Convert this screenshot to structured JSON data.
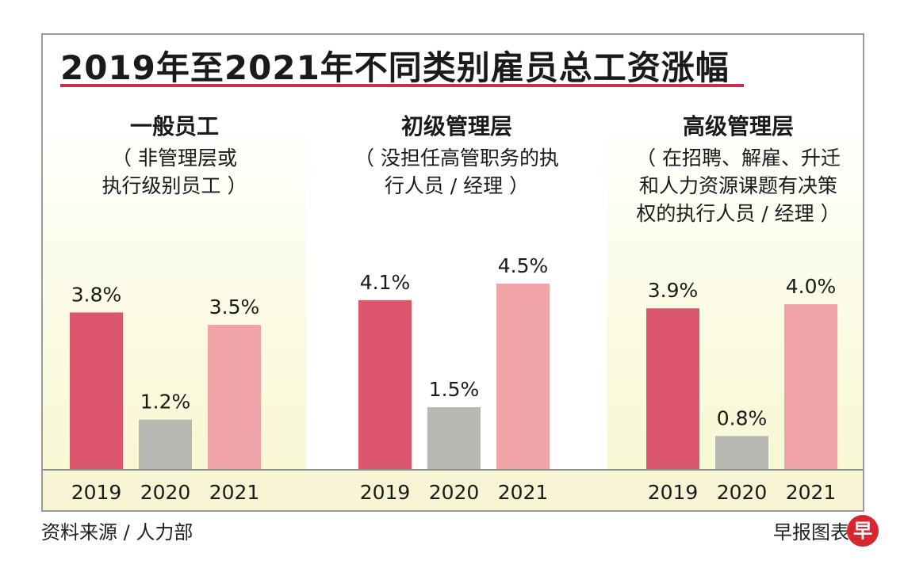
{
  "title": "2019年至2021年不同类别雇员总工资涨幅",
  "source": "资料来源 / 人力部",
  "credit": "早报图表",
  "logo_char": "早",
  "colors": {
    "accent": "#c8314e",
    "bar_2019": "#dc566d",
    "bar_2020": "#b8b8b2",
    "bar_2021": "#f0a4a8",
    "panel_tint": "#f7f7cf"
  },
  "panels": [
    {
      "title": "一般员工",
      "subtitle": "（ 非管理层或\n执行级别员工 ）"
    },
    {
      "title": "初级管理层",
      "subtitle": "（ 没担任高管职务的执\n行人员 / 经理 ）"
    },
    {
      "title": "高级管理层",
      "subtitle": "（ 在招聘、解雇、升迁\n和人力资源课题有决策\n权的执行人员 / 经理 ）"
    }
  ],
  "chart_data": {
    "type": "bar",
    "title": "2019年至2021年不同类别雇员总工资涨幅",
    "categories": [
      "一般员工",
      "初级管理层",
      "高级管理层"
    ],
    "years": [
      "2019",
      "2020",
      "2021"
    ],
    "series": [
      {
        "name": "2019",
        "values": [
          3.8,
          4.1,
          3.9
        ],
        "labels": [
          "3.8%",
          "4.1%",
          "3.9%"
        ]
      },
      {
        "name": "2020",
        "values": [
          1.2,
          1.5,
          0.8
        ],
        "labels": [
          "1.2%",
          "1.5%",
          "0.8%"
        ]
      },
      {
        "name": "2021",
        "values": [
          3.5,
          4.5,
          4.0
        ],
        "labels": [
          "3.5%",
          "4.5%",
          "4.0%"
        ]
      }
    ],
    "ylim": [
      0,
      4.5
    ],
    "unit": "%"
  }
}
